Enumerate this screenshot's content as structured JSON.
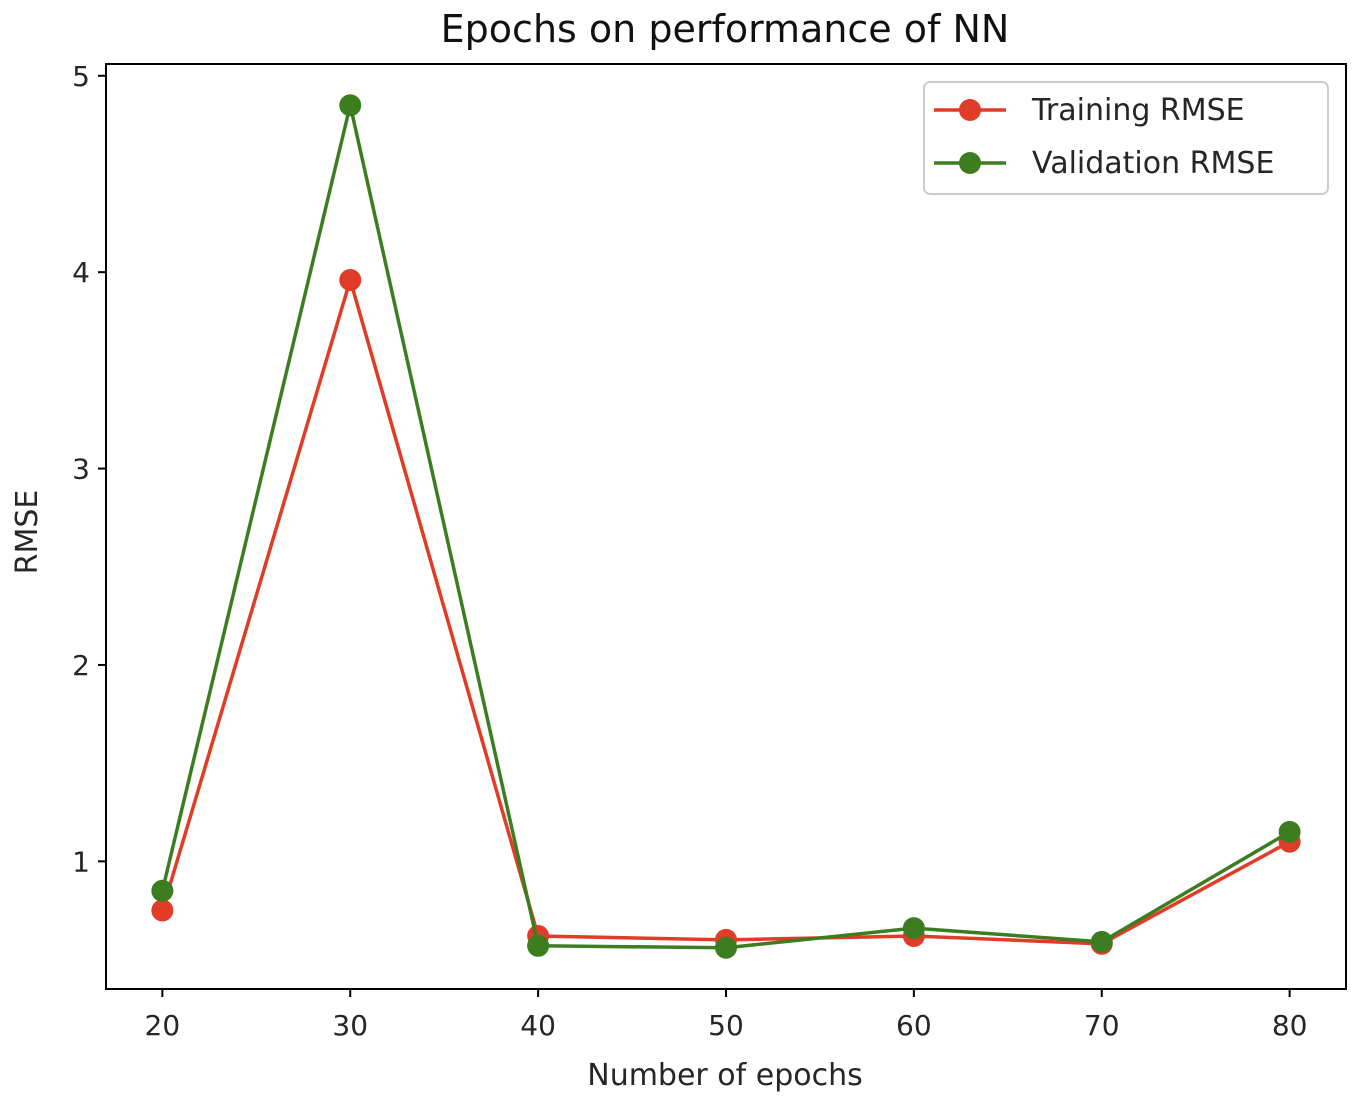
{
  "chart_data": {
    "type": "line",
    "title": "Epochs on performance of NN",
    "xlabel": "Number of epochs",
    "ylabel": "RMSE",
    "x": [
      20,
      30,
      40,
      50,
      60,
      70,
      80
    ],
    "xticks": [
      "20",
      "30",
      "40",
      "50",
      "60",
      "70",
      "80"
    ],
    "yticks": [
      "1",
      "2",
      "3",
      "4",
      "5"
    ],
    "xlim": [
      17,
      83
    ],
    "ylim": [
      0.35,
      5.06
    ],
    "grid": false,
    "legend_position": "top-right",
    "series": [
      {
        "name": "Training RMSE",
        "color": "#e03c28",
        "values": [
          0.75,
          3.96,
          0.62,
          0.6,
          0.62,
          0.58,
          1.1
        ]
      },
      {
        "name": "Validation RMSE",
        "color": "#3c7d20",
        "values": [
          0.85,
          4.85,
          0.57,
          0.56,
          0.66,
          0.59,
          1.15
        ]
      }
    ]
  }
}
